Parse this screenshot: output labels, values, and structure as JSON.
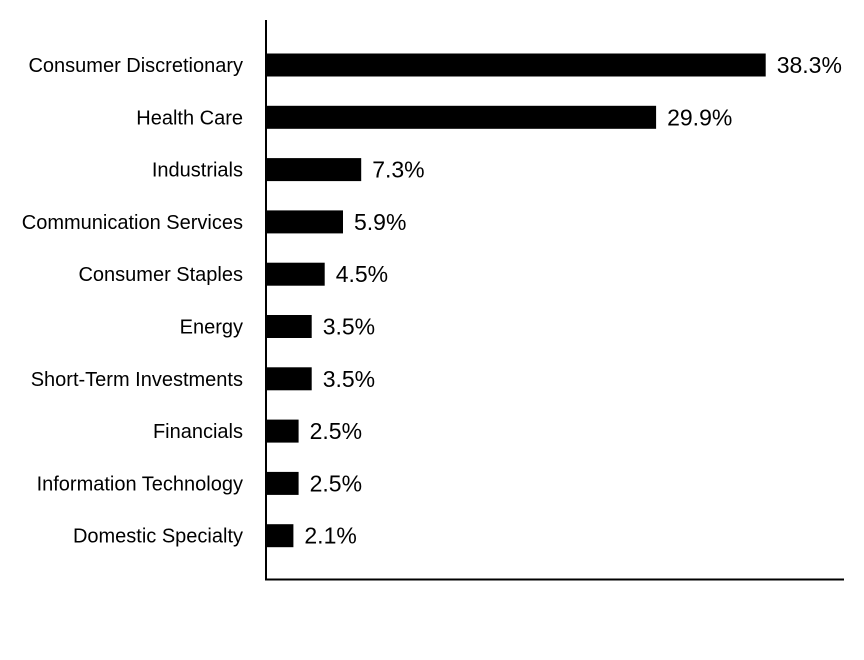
{
  "chart_data": {
    "type": "bar",
    "orientation": "horizontal",
    "categories": [
      "Consumer Discretionary",
      "Health Care",
      "Industrials",
      "Communication Services",
      "Consumer Staples",
      "Energy",
      "Short-Term Investments",
      "Financials",
      "Information Technology",
      "Domestic Specialty"
    ],
    "values": [
      38.3,
      29.9,
      7.3,
      5.9,
      4.5,
      3.5,
      3.5,
      2.5,
      2.5,
      2.1
    ],
    "data_labels": [
      "38.3%",
      "29.9%",
      "7.3%",
      "5.9%",
      "4.5%",
      "3.5%",
      "3.5%",
      "2.5%",
      "2.5%",
      "2.1%"
    ],
    "xlim": [
      0,
      44.3
    ],
    "grid": false,
    "legend": "none",
    "bar_color": "#000000"
  }
}
